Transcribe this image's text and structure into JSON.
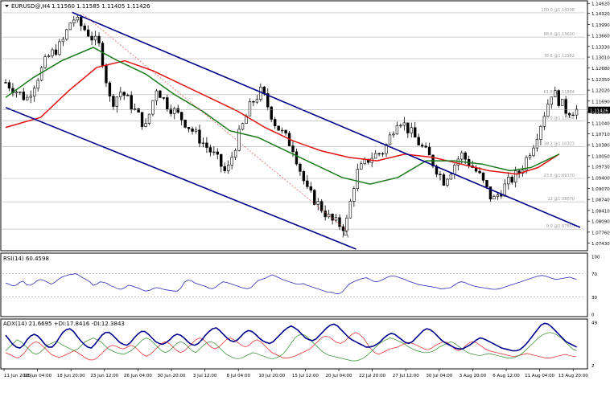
{
  "header": {
    "symbol": "EURUSD@,H4",
    "ohlc": "1.11560 1.11585 1.11405 1.11426"
  },
  "colors": {
    "candle": "#000000",
    "channel": "#00008b",
    "ma_fast": "#1a7a1a",
    "ma_slow": "#e01010",
    "fib": "#bbbbbb",
    "trend_dashed": "#e05050",
    "rsi": "#2b2bb8",
    "adx": "#00008b",
    "plus_di": "#2a8a2a",
    "minus_di": "#e02020",
    "price_tag_bg": "#000000"
  },
  "chart_data": [
    {
      "type": "candlestick",
      "title": "EURUSD@,H4",
      "ylim": [
        1.0725,
        1.1465
      ],
      "yticks": [
        1.1462,
        1.1432,
        1.1399,
        1.1366,
        1.1333,
        1.1301,
        1.1268,
        1.1235,
        1.1202,
        1.1169,
        1.1136,
        1.1104,
        1.1071,
        1.1038,
        1.1005,
        1.0973,
        1.094,
        1.0907,
        1.0874,
        1.0841,
        1.0809,
        1.0776,
        1.0743
      ],
      "ytick_labels": [
        "1.14620",
        "1.14320",
        "1.13990",
        "1.13660",
        "1.13330",
        "1.13010",
        "1.12680",
        "1.12350",
        "1.12020",
        "1.11690",
        "1.11360",
        "1.11040",
        "1.10710",
        "1.10380",
        "1.10050",
        "1.09730",
        "1.09400",
        "1.09070",
        "1.08740",
        "1.08410",
        "1.08090",
        "1.07760",
        "1.07430"
      ],
      "current_price": {
        "value": 1.11426,
        "label": "1.11426"
      },
      "x_labels": [
        "11 Jun 2015",
        "16 Jun 04:00",
        "18 Jun 20:00",
        "23 Jun 12:00",
        "26 Jun 04:00",
        "30 Jun 20:00",
        "3 Jul 12:00",
        "8 Jul 04:00",
        "10 Jul 20:00",
        "15 Jul 12:00",
        "20 Jul 04:00",
        "22 Jul 20:00",
        "27 Jul 12:00",
        "30 Jul 04:00",
        "3 Aug 20:00",
        "6 Aug 12:00",
        "11 Aug 04:00",
        "13 Aug 20:00"
      ],
      "n_bars": 160,
      "close_path": [
        [
          0,
          1.1225
        ],
        [
          6,
          1.1175
        ],
        [
          12,
          1.13
        ],
        [
          16,
          1.134
        ],
        [
          19,
          1.142
        ],
        [
          23,
          1.138
        ],
        [
          27,
          1.133
        ],
        [
          30,
          1.116
        ],
        [
          33,
          1.12
        ],
        [
          36,
          1.1155
        ],
        [
          40,
          1.109
        ],
        [
          43,
          1.121
        ],
        [
          46,
          1.116
        ],
        [
          50,
          1.112
        ],
        [
          55,
          1.106
        ],
        [
          60,
          1.1
        ],
        [
          63,
          1.095
        ],
        [
          66,
          1.105
        ],
        [
          70,
          1.116
        ],
        [
          73,
          1.12
        ],
        [
          77,
          1.11
        ],
        [
          82,
          1.103
        ],
        [
          86,
          1.09
        ],
        [
          90,
          1.085
        ],
        [
          93,
          1.081
        ],
        [
          97,
          1.079
        ],
        [
          100,
          1.095
        ],
        [
          104,
          1.1
        ],
        [
          108,
          1.102
        ],
        [
          112,
          1.112
        ],
        [
          116,
          1.107
        ],
        [
          121,
          1.1
        ],
        [
          125,
          1.093
        ],
        [
          130,
          1.101
        ],
        [
          135,
          1.095
        ],
        [
          139,
          1.087
        ],
        [
          143,
          1.092
        ],
        [
          147,
          1.096
        ],
        [
          151,
          1.105
        ],
        [
          156,
          1.12
        ],
        [
          160,
          1.114
        ],
        [
          164,
          1.1143
        ]
      ],
      "fibonacci": [
        {
          "level": "100.0",
          "price": 1.14338,
          "label": "100.0 @1.14338"
        },
        {
          "level": "88.6",
          "price": 1.1361,
          "label": "88.6 @1.13610"
        },
        {
          "level": "78.6",
          "price": 1.12962,
          "label": "78.6 @1.12962"
        },
        {
          "level": "61.8",
          "price": 1.11884,
          "label": "61.8 @1.11884"
        },
        {
          "level": "50.0",
          "price": 1.11094,
          "label": "50.0 @1.11094"
        },
        {
          "level": "38.2",
          "price": 1.10323,
          "label": "38.2 @1.10323"
        },
        {
          "level": "23.6",
          "price": 1.0937,
          "label": "23.6 @1.09370"
        },
        {
          "level": "12",
          "price": 1.0867,
          "label": "12 @1.08670"
        },
        {
          "level": "0.0",
          "price": 1.0785,
          "label": "0.0 @1.07850"
        }
      ],
      "channel": {
        "upper": [
          [
            19,
            1.1435
          ],
          [
            164,
            1.079
          ]
        ],
        "lower": [
          [
            0,
            1.115
          ],
          [
            100,
            1.0725
          ]
        ]
      },
      "dashed_trend": [
        [
          22,
          1.143
        ],
        [
          97,
          1.0785
        ]
      ],
      "ma_fast": [
        [
          0,
          1.118
        ],
        [
          8,
          1.124
        ],
        [
          16,
          1.129
        ],
        [
          25,
          1.133
        ],
        [
          32,
          1.129
        ],
        [
          40,
          1.125
        ],
        [
          48,
          1.119
        ],
        [
          56,
          1.114
        ],
        [
          64,
          1.108
        ],
        [
          72,
          1.106
        ],
        [
          80,
          1.102
        ],
        [
          88,
          1.098
        ],
        [
          96,
          1.094
        ],
        [
          104,
          1.092
        ],
        [
          112,
          1.094
        ],
        [
          120,
          1.099
        ],
        [
          128,
          1.099
        ],
        [
          136,
          1.098
        ],
        [
          144,
          1.096
        ],
        [
          150,
          1.097
        ],
        [
          158,
          1.101
        ]
      ],
      "ma_slow": [
        [
          0,
          1.109
        ],
        [
          10,
          1.112
        ],
        [
          18,
          1.12
        ],
        [
          26,
          1.127
        ],
        [
          34,
          1.129
        ],
        [
          42,
          1.126
        ],
        [
          50,
          1.122
        ],
        [
          58,
          1.118
        ],
        [
          66,
          1.114
        ],
        [
          74,
          1.109
        ],
        [
          82,
          1.105
        ],
        [
          90,
          1.102
        ],
        [
          98,
          1.1
        ],
        [
          106,
          1.099
        ],
        [
          114,
          1.101
        ],
        [
          122,
          1.1
        ],
        [
          130,
          1.098
        ],
        [
          138,
          1.096
        ],
        [
          146,
          1.095
        ],
        [
          152,
          1.097
        ],
        [
          158,
          1.101
        ]
      ],
      "annotation": {
        "text": "A",
        "bar": 97,
        "price": 1.076
      }
    },
    {
      "type": "line",
      "title": "RSI(14) 60.4598",
      "ylim": [
        0,
        100
      ],
      "yticks": [
        0,
        30,
        70,
        100
      ],
      "levels": [
        30,
        70
      ],
      "values": [
        54,
        52,
        49,
        50,
        55,
        57,
        51,
        50,
        53,
        58,
        60,
        58,
        55,
        52,
        55,
        60,
        64,
        66,
        68,
        69,
        70,
        67,
        63,
        60,
        56,
        50,
        52,
        56,
        55,
        53,
        49,
        47,
        44,
        43,
        46,
        50,
        49,
        47,
        45,
        42,
        40,
        41,
        44,
        46,
        45,
        43,
        42,
        41,
        40,
        40,
        45,
        55,
        59,
        58,
        54,
        52,
        50,
        48,
        45,
        44,
        47,
        52,
        56,
        55,
        53,
        51,
        49,
        47,
        45,
        44,
        46,
        52,
        58,
        60,
        62,
        65,
        68,
        66,
        63,
        60,
        58,
        56,
        54,
        52,
        52,
        53,
        50,
        48,
        46,
        44,
        42,
        40,
        38,
        38,
        36,
        35,
        38,
        45,
        52,
        55,
        58,
        60,
        62,
        63,
        60,
        57,
        56,
        58,
        61,
        64,
        66,
        66,
        64,
        62,
        60,
        57,
        55,
        53,
        51,
        50,
        49,
        48,
        47,
        46,
        44,
        44,
        45,
        46,
        50,
        54,
        56,
        55,
        52,
        50,
        48,
        47,
        46,
        45,
        44,
        43,
        43,
        44,
        46,
        48,
        50,
        52,
        54,
        56,
        58,
        60,
        62,
        64,
        66,
        67,
        66,
        64,
        62,
        60,
        61,
        62,
        63,
        64,
        62,
        60
      ]
    },
    {
      "type": "line",
      "title": "ADX(14) 21.6695 +DI:17.8416 -DI:12.3843",
      "ylim": [
        0,
        50
      ],
      "yticks": [
        2,
        49
      ],
      "series": [
        {
          "name": "ADX(14)",
          "values": [
            35,
            30,
            25,
            22,
            21,
            24,
            30,
            34,
            36,
            34,
            30,
            25,
            22,
            22,
            26,
            32,
            38,
            41,
            42,
            39,
            34,
            29,
            25,
            22,
            21,
            25,
            30,
            35,
            38,
            38,
            35,
            31,
            27,
            25,
            24,
            27,
            32,
            36,
            39,
            39,
            36,
            32,
            28,
            26,
            25,
            27,
            30,
            34,
            36,
            35,
            32,
            28,
            25,
            24,
            26,
            30,
            35,
            39,
            42,
            43,
            40,
            36,
            32,
            29,
            28,
            30,
            34,
            38,
            40,
            39,
            36,
            32,
            29,
            27,
            26,
            28,
            32,
            36,
            40,
            43,
            45,
            43,
            40,
            36,
            32,
            30,
            29,
            31,
            35,
            39,
            43,
            46,
            47,
            45,
            41,
            37,
            33,
            30,
            28,
            26,
            24,
            22,
            22,
            23,
            25,
            28,
            32,
            35,
            37,
            36,
            33,
            30,
            27,
            26,
            28,
            32,
            36,
            40,
            42,
            41,
            38,
            34,
            30,
            27,
            25,
            23,
            21,
            20,
            20,
            22,
            24,
            27,
            30,
            32,
            31,
            29,
            27,
            25,
            23,
            21,
            20,
            19,
            18,
            18,
            19,
            22,
            26,
            31,
            36,
            41,
            46,
            48,
            47,
            44,
            40,
            36,
            32,
            28,
            26,
            24,
            22
          ]
        },
        {
          "name": "+DI",
          "values": [
            18,
            22,
            26,
            30,
            28,
            24,
            20,
            16,
            14,
            16,
            20,
            24,
            26,
            28,
            27,
            24,
            22,
            20,
            18,
            20,
            24,
            28,
            30,
            32,
            30,
            28,
            24,
            20,
            18,
            16,
            15,
            14,
            16,
            18,
            22,
            26,
            30,
            32,
            30,
            26,
            22,
            18,
            16,
            18,
            22,
            26,
            28,
            26,
            22,
            18,
            16,
            20,
            24,
            27,
            28,
            26,
            22,
            18,
            14,
            12,
            10,
            9,
            10,
            12,
            14,
            16,
            15,
            13,
            12,
            10,
            9,
            10,
            12,
            15,
            20,
            26,
            32,
            35,
            36,
            34,
            30,
            26,
            22,
            18,
            15,
            13,
            12,
            11,
            10,
            9,
            8,
            7,
            7,
            8,
            10,
            13,
            17,
            21,
            25,
            28,
            30,
            32,
            31,
            29,
            27,
            25,
            22,
            20,
            18,
            17,
            16,
            16,
            17,
            19,
            22,
            24,
            26,
            28,
            26,
            23,
            20,
            17,
            15,
            14,
            13,
            13,
            14,
            15,
            14,
            13,
            12,
            11,
            10,
            10,
            11,
            13,
            16,
            20,
            24,
            28,
            32,
            35,
            37,
            38,
            37,
            35,
            32,
            28,
            24,
            20,
            18
          ]
        },
        {
          "name": "-DI",
          "values": [
            16,
            14,
            12,
            10,
            12,
            16,
            22,
            26,
            28,
            26,
            22,
            18,
            14,
            12,
            11,
            12,
            14,
            16,
            18,
            16,
            13,
            10,
            8,
            8,
            10,
            14,
            18,
            22,
            24,
            23,
            21,
            20,
            22,
            24,
            22,
            18,
            14,
            12,
            14,
            18,
            22,
            26,
            28,
            26,
            22,
            18,
            16,
            18,
            22,
            26,
            30,
            32,
            30,
            26,
            22,
            20,
            22,
            26,
            30,
            32,
            30,
            27,
            24,
            22,
            24,
            28,
            30,
            28,
            24,
            20,
            16,
            14,
            12,
            10,
            10,
            11,
            12,
            14,
            16,
            18,
            20,
            24,
            28,
            32,
            34,
            33,
            30,
            27,
            26,
            28,
            32,
            36,
            38,
            36,
            32,
            26,
            20,
            16,
            14,
            16,
            18,
            20,
            21,
            22,
            24,
            26,
            27,
            26,
            24,
            22,
            20,
            19,
            21,
            24,
            26,
            28,
            27,
            24,
            20,
            18,
            20,
            24,
            27,
            28,
            26,
            23,
            20,
            18,
            17,
            16,
            15,
            14,
            13,
            12,
            12,
            13,
            14,
            15,
            14,
            13,
            12,
            11,
            10,
            10,
            11,
            12,
            13,
            14,
            13,
            12,
            12
          ]
        }
      ]
    }
  ]
}
